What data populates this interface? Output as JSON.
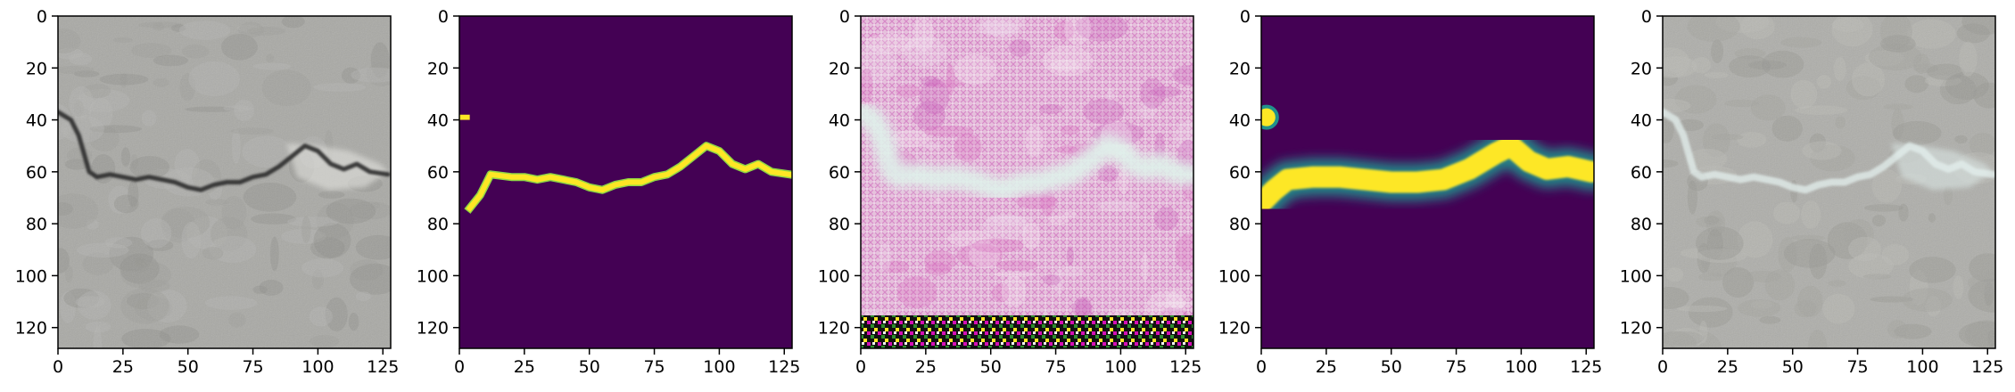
{
  "figure": {
    "panel_count": 5,
    "x_ticks": [
      "0",
      "25",
      "50",
      "75",
      "100",
      "125"
    ],
    "y_ticks": [
      "0",
      "20",
      "40",
      "60",
      "80",
      "100",
      "120"
    ],
    "panels": [
      {
        "name": "input-crack-photo",
        "kind": "photo",
        "background": "#a9a9a5",
        "texture": [
          "#9d9d99",
          "#b6b6b2",
          "#8e8e8a"
        ],
        "crack_color": "#2c2c2c",
        "extra_light_patch": "#e2e2de"
      },
      {
        "name": "ground-truth-mask",
        "kind": "mask",
        "background": "#440154",
        "crack_color": "#fde725",
        "edge_color": "#8fd744"
      },
      {
        "name": "generated-image",
        "kind": "generated",
        "background": "#e8c8de",
        "texture": [
          "#d66cc0",
          "#f2e2ef",
          "#c65ab8",
          "#f7eef5"
        ],
        "crack_color": "#dff2ea",
        "bottom_band_colors": [
          "#d50fb4",
          "#2d8f2d",
          "#fde725",
          "#111111"
        ]
      },
      {
        "name": "predicted-probability-map",
        "kind": "heatmap",
        "background": "#440154",
        "crack_color": "#fde725",
        "glow_color": "#21918c"
      },
      {
        "name": "overlay-result",
        "kind": "photo",
        "background": "#aeaeaa",
        "texture": [
          "#a1a19d",
          "#bcbcb8",
          "#969692"
        ],
        "crack_color": "#e4f0ee",
        "extra_light_patch": "#d9e4e2"
      }
    ],
    "crack_path": [
      [
        0,
        37
      ],
      [
        5,
        40
      ],
      [
        8,
        46
      ],
      [
        12,
        60
      ],
      [
        15,
        62
      ],
      [
        20,
        61
      ],
      [
        25,
        62
      ],
      [
        30,
        63
      ],
      [
        35,
        62
      ],
      [
        40,
        63
      ],
      [
        45,
        64
      ],
      [
        50,
        66
      ],
      [
        55,
        67
      ],
      [
        60,
        65
      ],
      [
        65,
        64
      ],
      [
        70,
        64
      ],
      [
        75,
        62
      ],
      [
        80,
        61
      ],
      [
        85,
        58
      ],
      [
        90,
        54
      ],
      [
        95,
        50
      ],
      [
        100,
        52
      ],
      [
        105,
        57
      ],
      [
        110,
        59
      ],
      [
        115,
        57
      ],
      [
        120,
        60
      ],
      [
        127,
        61
      ]
    ],
    "mask_path": [
      [
        4,
        74
      ],
      [
        8,
        69
      ],
      [
        12,
        61
      ],
      [
        20,
        62
      ],
      [
        25,
        62
      ],
      [
        30,
        63
      ],
      [
        35,
        62
      ],
      [
        40,
        63
      ],
      [
        45,
        64
      ],
      [
        50,
        66
      ],
      [
        55,
        67
      ],
      [
        60,
        65
      ],
      [
        65,
        64
      ],
      [
        70,
        64
      ],
      [
        75,
        62
      ],
      [
        80,
        61
      ],
      [
        85,
        58
      ],
      [
        90,
        54
      ],
      [
        95,
        50
      ],
      [
        100,
        52
      ],
      [
        105,
        57
      ],
      [
        110,
        59
      ],
      [
        115,
        57
      ],
      [
        120,
        60
      ],
      [
        127,
        61
      ]
    ],
    "mask_dot": [
      0,
      38,
      4,
      40
    ],
    "probability_path": [
      [
        0,
        72
      ],
      [
        5,
        67
      ],
      [
        10,
        63
      ],
      [
        20,
        62
      ],
      [
        30,
        62
      ],
      [
        40,
        63
      ],
      [
        50,
        64
      ],
      [
        60,
        64
      ],
      [
        70,
        63
      ],
      [
        80,
        59
      ],
      [
        90,
        53
      ],
      [
        96,
        50
      ],
      [
        103,
        56
      ],
      [
        110,
        59
      ],
      [
        118,
        58
      ],
      [
        127,
        60
      ]
    ],
    "probability_dot": [
      2,
      39
    ]
  }
}
